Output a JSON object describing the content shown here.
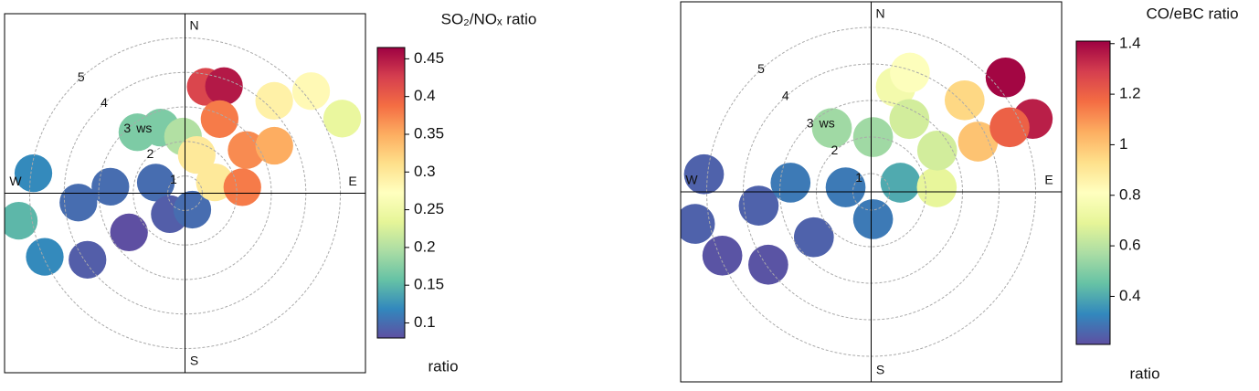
{
  "chart_data": [
    {
      "type": "polar",
      "title": "SO₂/NOₓ ratio",
      "colorbar_title": "ratio",
      "directions": [
        "N",
        "E",
        "S",
        "W"
      ],
      "r_label": "ws",
      "rlim": [
        0.5,
        5.7
      ],
      "rticks": [
        1,
        2,
        3,
        4,
        5
      ],
      "clim": [
        0.08,
        0.465
      ],
      "cticks": [
        0.1,
        0.15,
        0.2,
        0.25,
        0.3,
        0.35,
        0.4,
        0.45
      ],
      "colormap": [
        "#5E4FA2",
        "#3288BD",
        "#66C2A5",
        "#ABDDA4",
        "#E6F598",
        "#FFFFBF",
        "#FEE08B",
        "#FDAE61",
        "#F46D43",
        "#D53E4F",
        "#9E0142"
      ],
      "wd": [
        277.5,
        260.6,
        245.6,
        265,
        275,
        235.7,
        235,
        290,
        216,
        156,
        339.5,
        358,
        17,
        11,
        20,
        25,
        70,
        84,
        55,
        44,
        62,
        51,
        64.6,
        322
      ],
      "ws": [
        4.93,
        5.38,
        4.96,
        3.6,
        2.67,
        3.92,
        2.48,
        1.4,
        1.25,
        1.02,
        2.53,
        2.14,
        1.66,
        3.64,
        3.8,
        2.87,
        1.42,
        2.17,
        2.68,
        4.22,
        3.43,
        5.2,
        5.54,
        2.74
      ],
      "values": [
        0.12,
        0.15,
        0.12,
        0.1,
        0.1,
        0.09,
        0.08,
        0.1,
        0.09,
        0.1,
        0.17,
        0.2,
        0.3,
        0.42,
        0.45,
        0.38,
        0.3,
        0.38,
        0.37,
        0.29,
        0.35,
        0.28,
        0.24,
        0.17
      ]
    },
    {
      "type": "polar",
      "title": "CO/eBC ratio",
      "colorbar_title": "ratio",
      "directions": [
        "N",
        "E",
        "S",
        "W"
      ],
      "r_label": "ws",
      "rlim": [
        0.5,
        5.7
      ],
      "rticks": [
        1,
        2,
        3,
        4,
        5
      ],
      "clim": [
        0.21,
        1.41
      ],
      "cticks": [
        0.4,
        0.6,
        0.8,
        1,
        1.2,
        1.4
      ],
      "colormap": [
        "#5E4FA2",
        "#3288BD",
        "#66C2A5",
        "#ABDDA4",
        "#E6F598",
        "#FFFFBF",
        "#FEE08B",
        "#FDAE61",
        "#F46D43",
        "#D53E4F",
        "#9E0142"
      ],
      "wd": [
        276,
        259.7,
        246.8,
        263,
        276.5,
        234.7,
        231.6,
        280,
        176,
        72.7,
        328.4,
        2,
        13.2,
        27.7,
        86,
        58,
        45.6,
        64.8,
        49.6,
        65.7,
        65,
        18
      ],
      "ws": [
        5.1,
        5.4,
        4.93,
        3.6,
        2.72,
        3.95,
        2.5,
        1.21,
        1.25,
        1.34,
        2.55,
        2,
        3.45,
        2.75,
        2.3,
        2.63,
        4.08,
        3.73,
        5.33,
        5.35,
        4.68,
        3.93
      ],
      "values": [
        0.25,
        0.25,
        0.22,
        0.25,
        0.3,
        0.22,
        0.25,
        0.3,
        0.3,
        0.4,
        0.55,
        0.55,
        0.75,
        0.65,
        0.7,
        0.65,
        0.95,
        1.0,
        1.4,
        1.35,
        1.2,
        0.8
      ]
    }
  ]
}
